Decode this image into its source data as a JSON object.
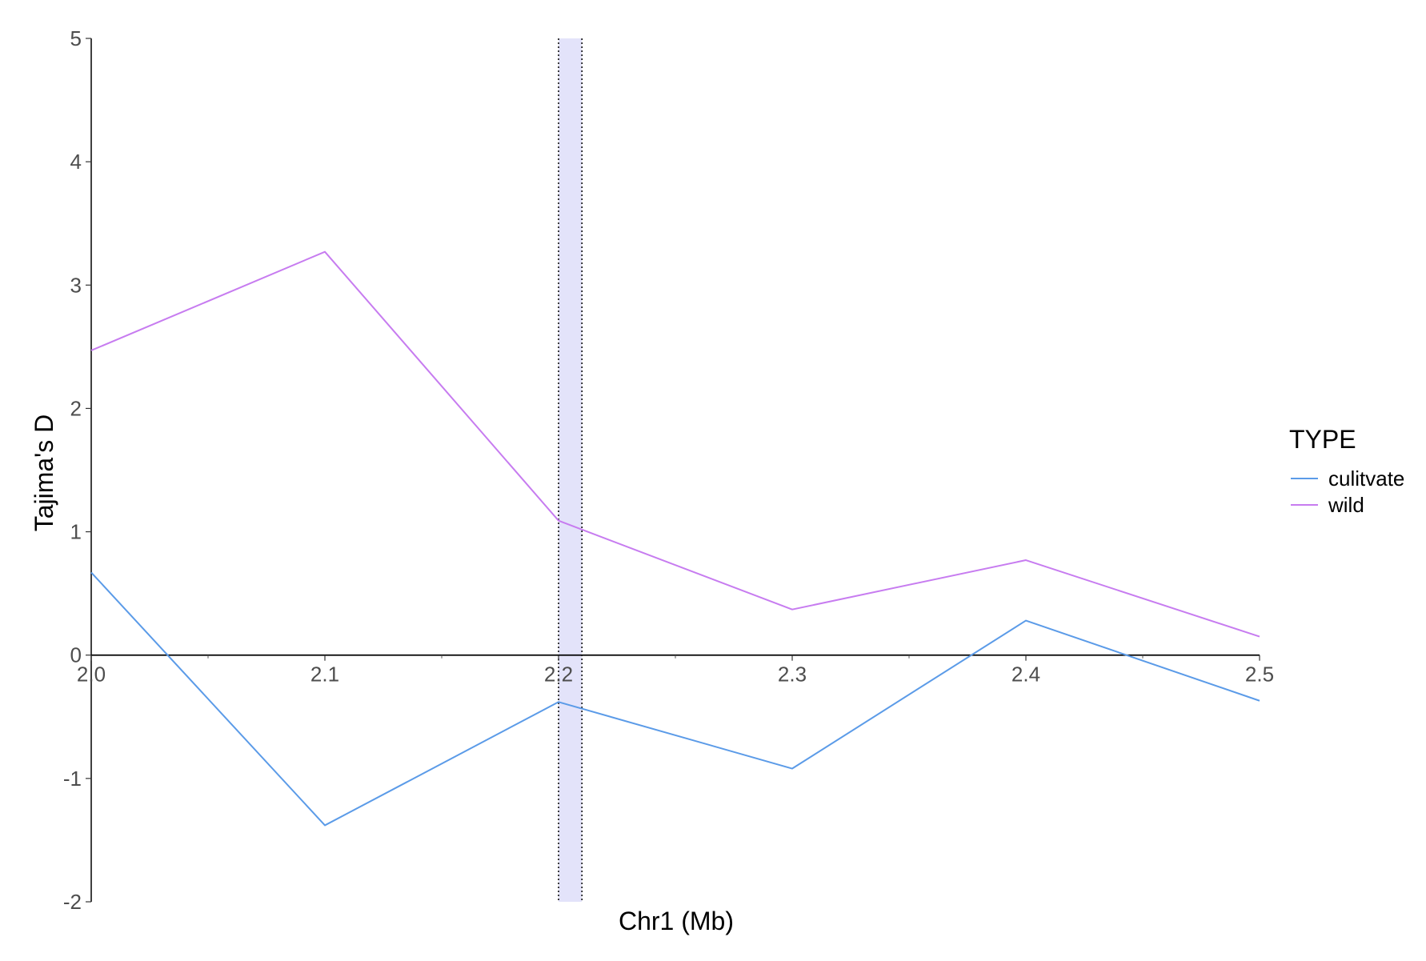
{
  "chart_data": {
    "type": "line",
    "xlabel": "Chr1 (Mb)",
    "ylabel": "Tajima's D",
    "xlim": [
      2.0,
      2.5
    ],
    "ylim": [
      -2,
      5
    ],
    "x_ticks": [
      "2.0",
      "2.1",
      "2.2",
      "2.3",
      "2.4",
      "2.5"
    ],
    "y_ticks": [
      "-2",
      "-1",
      "0",
      "1",
      "2",
      "3",
      "4",
      "5"
    ],
    "x": [
      2.0,
      2.1,
      2.2,
      2.3,
      2.4,
      2.5
    ],
    "series": [
      {
        "name": "culitvate",
        "color": "#5b9be8",
        "values": [
          0.67,
          -1.38,
          -0.38,
          -0.92,
          0.28,
          -0.37
        ]
      },
      {
        "name": "wild",
        "color": "#c77cf0",
        "values": [
          2.47,
          3.27,
          1.09,
          0.37,
          0.77,
          0.15
        ]
      }
    ],
    "highlight_region": {
      "x_start": 2.2,
      "x_end": 2.21,
      "fill": "#e3e3fa"
    },
    "zero_line": true,
    "grid": false,
    "legend": {
      "title": "TYPE",
      "position": "right"
    }
  }
}
